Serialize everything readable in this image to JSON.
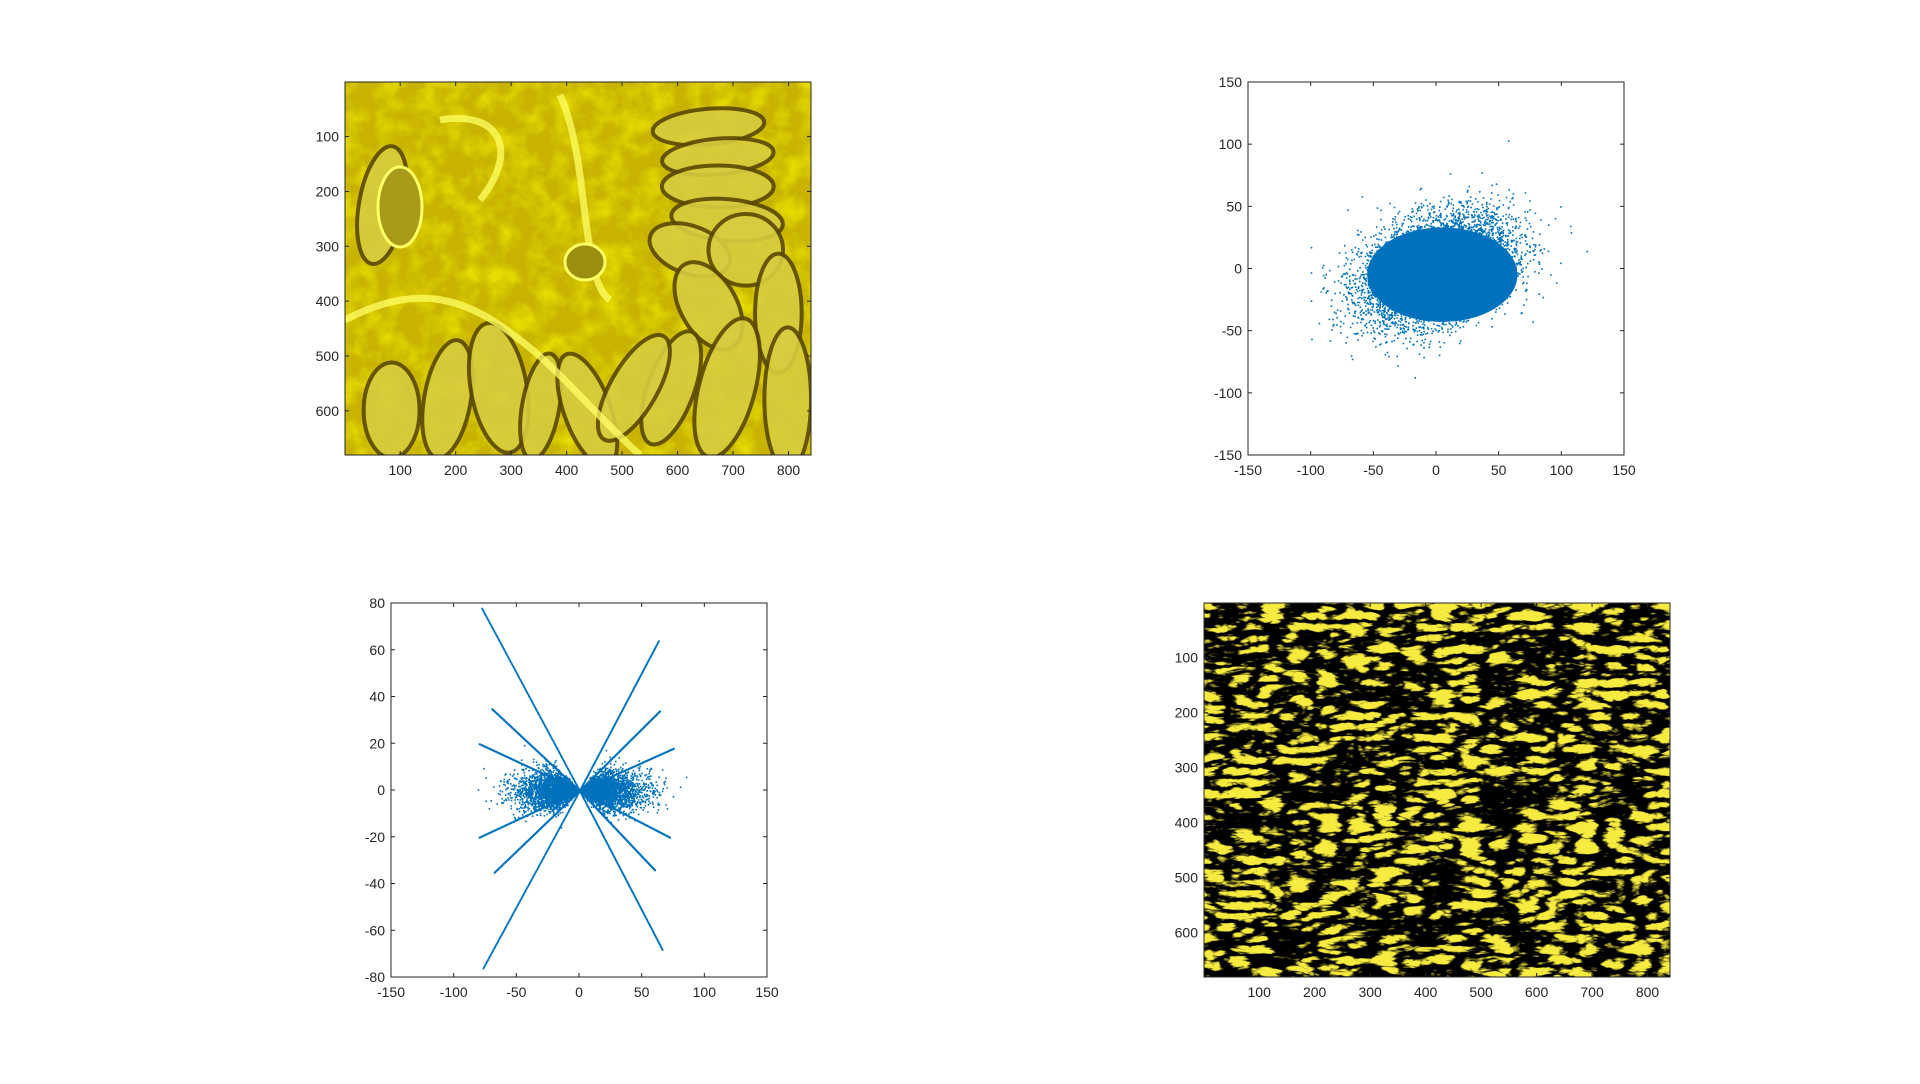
{
  "figure": {
    "background": "#ffffff",
    "axis_color": "#262626",
    "scatter_color": "#0072bd"
  },
  "chart_data": [
    {
      "type": "heatmap",
      "description_kind": "image",
      "colormap": "yellow-tinted tissue histology image",
      "colors": {
        "base": "#c8b400",
        "bright": "#ffff3c",
        "dark": "#4a3f00"
      },
      "x_ticks": [
        100,
        200,
        300,
        400,
        500,
        600,
        700,
        800
      ],
      "y_ticks": [
        100,
        200,
        300,
        400,
        500,
        600
      ],
      "xlim": [
        0.5,
        840.5
      ],
      "ylim": [
        0.5,
        680.5
      ],
      "y_reversed": true,
      "title": "",
      "xlabel": "",
      "ylabel": ""
    },
    {
      "type": "scatter",
      "x_ticks": [
        -150,
        -100,
        -50,
        0,
        50,
        100,
        150
      ],
      "y_ticks": [
        -150,
        -100,
        -50,
        0,
        50,
        100,
        150
      ],
      "xlim": [
        -150,
        150
      ],
      "ylim": [
        -150,
        150
      ],
      "cloud": {
        "center": [
          0,
          0
        ],
        "x_spread_approx": 30,
        "y_spread_approx": 22,
        "correlation_approx": 0.35,
        "x_range_approx": [
          -100,
          120
        ],
        "y_range_approx": [
          -103,
          125
        ]
      },
      "title": "",
      "xlabel": "",
      "ylabel": ""
    },
    {
      "type": "scatter",
      "x_ticks": [
        -150,
        -100,
        -50,
        0,
        50,
        100,
        150
      ],
      "y_ticks": [
        -80,
        -60,
        -40,
        -20,
        0,
        20,
        40,
        60,
        80
      ],
      "xlim": [
        -150,
        150
      ],
      "ylim": [
        -80,
        80
      ],
      "rays": [
        {
          "end": [
            -78,
            78
          ]
        },
        {
          "end": [
            63,
            64
          ]
        },
        {
          "end": [
            -77,
            -76
          ]
        },
        {
          "end": [
            66,
            -68
          ]
        },
        {
          "end": [
            -70,
            35
          ]
        },
        {
          "end": [
            64,
            34
          ]
        },
        {
          "end": [
            -68,
            -35
          ]
        },
        {
          "end": [
            60,
            -34
          ]
        },
        {
          "end": [
            -80,
            20
          ]
        },
        {
          "end": [
            75,
            18
          ]
        },
        {
          "end": [
            -80,
            -20
          ]
        },
        {
          "end": [
            72,
            -20
          ]
        }
      ],
      "band": {
        "x_range_approx": [
          -100,
          120
        ],
        "y_half_width_approx": 10
      },
      "title": "",
      "xlabel": "",
      "ylabel": ""
    },
    {
      "type": "heatmap",
      "description_kind": "image",
      "colormap": "sparse yellow edge texture on black",
      "colors": {
        "background": "#000000",
        "edge": "#e6d200",
        "edge_bright": "#fff04a"
      },
      "x_ticks": [
        100,
        200,
        300,
        400,
        500,
        600,
        700,
        800
      ],
      "y_ticks": [
        100,
        200,
        300,
        400,
        500,
        600
      ],
      "xlim": [
        0.5,
        840.5
      ],
      "ylim": [
        0.5,
        680.5
      ],
      "y_reversed": true,
      "title": "",
      "xlabel": "",
      "ylabel": ""
    }
  ]
}
